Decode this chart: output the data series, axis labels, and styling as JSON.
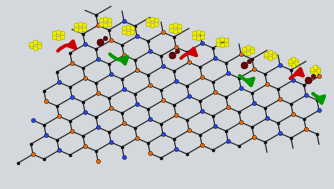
{
  "background_color": "#d4d8dc",
  "figsize": [
    3.34,
    1.89
  ],
  "dpi": 100,
  "lattice": {
    "black_color": "#111111",
    "orange_color": "#ee6600",
    "blue_color": "#2244ee",
    "line_color": "#333333",
    "line_width": 0.9
  },
  "sulfur": {
    "color": "#eeee00",
    "edge_color": "#999900",
    "size": 3.5
  },
  "copper": {
    "color": "#6b0000",
    "size": 5.0
  },
  "arrows_red": {
    "color": "#cc0000",
    "lw": 2.2
  },
  "arrows_green": {
    "color": "#009900",
    "lw": 2.2
  }
}
